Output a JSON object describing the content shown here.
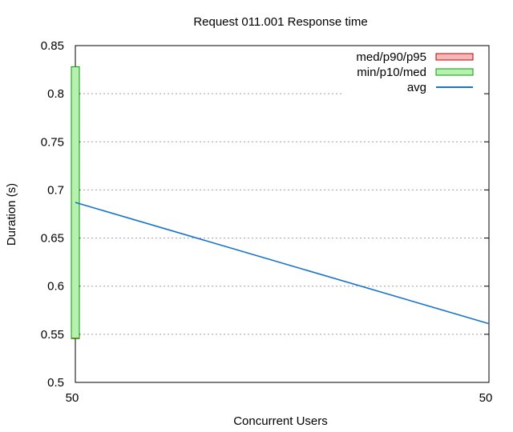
{
  "chart_data": {
    "type": "box",
    "title": "Request 011.001 Response time",
    "xlabel": "Concurrent Users",
    "ylabel": "Duration (s)",
    "x_ticks": [
      "50",
      "50"
    ],
    "y_ticks": [
      "0.5",
      "0.55",
      "0.6",
      "0.65",
      "0.7",
      "0.75",
      "0.8",
      "0.85"
    ],
    "ylim": [
      0.5,
      0.85
    ],
    "grid": "horizontal dotted",
    "legend_position": "top-right",
    "series": [
      {
        "name": "med/p90/p95",
        "kind": "box",
        "color": "#f4b8b8",
        "stroke": "#c00000",
        "x": "50",
        "low": 0.546,
        "high": 0.546
      },
      {
        "name": "min/p10/med",
        "kind": "box",
        "color": "#b8f0b0",
        "stroke": "#00a000",
        "x": "50",
        "low": 0.546,
        "high": 0.828
      },
      {
        "name": "avg",
        "kind": "line",
        "color": "#1874cd",
        "values": [
          0.687,
          0.561
        ]
      }
    ]
  }
}
